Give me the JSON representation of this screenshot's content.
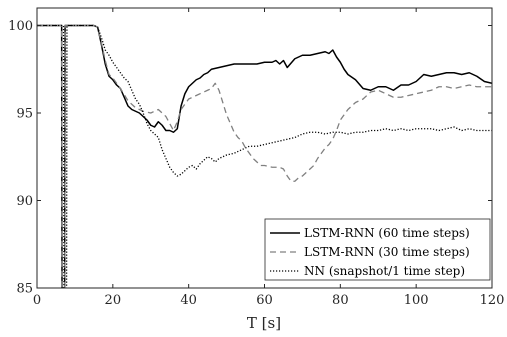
{
  "chart_data": {
    "type": "line",
    "title": "",
    "xlabel": "T [s]",
    "ylabel": "",
    "xlim": [
      0,
      120
    ],
    "ylim": [
      85,
      101
    ],
    "x_ticks": [
      0,
      20,
      40,
      60,
      80,
      100,
      120
    ],
    "y_ticks": [
      85,
      90,
      95,
      100
    ],
    "grid": false,
    "legend_position": "bottom-right",
    "series": [
      {
        "name": "LSTM-RNN (60 time steps)",
        "color": "#000000",
        "dash": "solid",
        "x": [
          0,
          6.5,
          6.6,
          7.3,
          7.4,
          8.3,
          8.4,
          12,
          15,
          16,
          17,
          18,
          19,
          20,
          21,
          22,
          23,
          24,
          25,
          26,
          27,
          28,
          29,
          30,
          31,
          32,
          33,
          34,
          35,
          36,
          37,
          38,
          39,
          40,
          41,
          42,
          43,
          44,
          45,
          46,
          48,
          50,
          52,
          54,
          56,
          58,
          60,
          62,
          63,
          64,
          65,
          66,
          68,
          70,
          72,
          74,
          76,
          77,
          78,
          79,
          80,
          81,
          82,
          84,
          86,
          88,
          90,
          92,
          94,
          96,
          98,
          100,
          102,
          104,
          106,
          108,
          110,
          112,
          114,
          116,
          118,
          120
        ],
        "y": [
          100,
          100,
          85,
          85,
          100,
          100,
          100,
          100,
          100,
          99.9,
          98.9,
          97.8,
          97.1,
          96.9,
          96.6,
          96.4,
          95.9,
          95.4,
          95.2,
          95.1,
          95.0,
          94.8,
          94.6,
          94.3,
          94.2,
          94.5,
          94.3,
          94.0,
          94.0,
          93.9,
          94.1,
          95.4,
          96.1,
          96.5,
          96.7,
          96.9,
          97.0,
          97.2,
          97.3,
          97.5,
          97.6,
          97.7,
          97.8,
          97.8,
          97.8,
          97.8,
          97.9,
          97.9,
          98.0,
          97.8,
          98.0,
          97.6,
          98.1,
          98.3,
          98.3,
          98.4,
          98.5,
          98.4,
          98.6,
          98.2,
          97.9,
          97.5,
          97.2,
          96.9,
          96.4,
          96.3,
          96.5,
          96.5,
          96.3,
          96.6,
          96.6,
          96.8,
          97.2,
          97.1,
          97.2,
          97.3,
          97.3,
          97.2,
          97.3,
          97.1,
          96.8,
          96.7
        ]
      },
      {
        "name": "LSTM-RNN (30 time steps)",
        "color": "#808080",
        "dash": "dashed",
        "x": [
          0,
          6.5,
          6.6,
          7.3,
          7.4,
          8.3,
          8.4,
          12,
          15,
          16,
          17,
          18,
          19,
          20,
          22,
          24,
          26,
          28,
          30,
          32,
          34,
          35,
          36,
          37,
          38,
          39,
          40,
          41,
          42,
          44,
          45,
          46,
          47,
          48,
          49,
          50,
          51,
          52,
          53,
          54,
          55,
          56,
          57,
          58,
          59,
          60,
          62,
          64,
          65,
          66,
          67,
          68,
          69,
          70,
          71,
          72,
          73,
          74,
          75,
          76,
          77,
          78,
          79,
          80,
          82,
          84,
          86,
          88,
          90,
          92,
          94,
          96,
          98,
          100,
          102,
          104,
          106,
          108,
          110,
          112,
          114,
          116,
          118,
          120
        ],
        "y": [
          100,
          100,
          85,
          85,
          100,
          100,
          100,
          100,
          100,
          99.9,
          99.0,
          98.0,
          97.2,
          97.0,
          96.4,
          95.7,
          95.3,
          95.1,
          95.0,
          95.2,
          94.8,
          94.4,
          94.0,
          94.5,
          95.2,
          95.5,
          95.8,
          95.9,
          96.0,
          96.2,
          96.3,
          96.4,
          96.7,
          96.3,
          95.6,
          94.9,
          94.4,
          93.9,
          93.6,
          93.4,
          93.0,
          92.7,
          92.4,
          92.2,
          92.0,
          92.0,
          91.9,
          91.9,
          91.8,
          91.4,
          91.1,
          91.1,
          91.3,
          91.4,
          91.6,
          91.8,
          92.0,
          92.4,
          92.7,
          93.0,
          93.2,
          93.5,
          94.0,
          94.6,
          95.2,
          95.6,
          95.8,
          96.2,
          96.3,
          96.1,
          95.9,
          95.9,
          96.0,
          96.1,
          96.2,
          96.3,
          96.5,
          96.5,
          96.4,
          96.5,
          96.6,
          96.5,
          96.5,
          96.5
        ]
      },
      {
        "name": "NN (snapshot/1 time step)",
        "color": "#000000",
        "dash": "dotted",
        "x": [
          0,
          7.0,
          7.1,
          7.8,
          7.9,
          8.8,
          8.9,
          12,
          15,
          16,
          17,
          18,
          19,
          20,
          21,
          22,
          23,
          24,
          25,
          26,
          27,
          28,
          29,
          30,
          31,
          32,
          33,
          34,
          35,
          36,
          37,
          38,
          39,
          40,
          41,
          42,
          43,
          44,
          45,
          46,
          47,
          48,
          50,
          52,
          54,
          56,
          58,
          60,
          62,
          64,
          66,
          68,
          70,
          72,
          74,
          76,
          78,
          80,
          82,
          84,
          86,
          88,
          90,
          92,
          94,
          96,
          98,
          100,
          102,
          104,
          106,
          108,
          110,
          112,
          114,
          116,
          118,
          120
        ],
        "y": [
          100,
          100,
          85,
          85,
          100,
          100,
          100,
          100,
          100,
          99.9,
          99.3,
          98.6,
          98.3,
          97.9,
          97.6,
          97.3,
          97.0,
          96.8,
          96.3,
          95.8,
          95.5,
          95.0,
          94.4,
          94.0,
          93.8,
          93.6,
          92.9,
          92.4,
          91.9,
          91.6,
          91.4,
          91.5,
          91.7,
          91.9,
          92.0,
          91.8,
          92.1,
          92.3,
          92.5,
          92.4,
          92.2,
          92.4,
          92.6,
          92.7,
          92.9,
          93.1,
          93.1,
          93.2,
          93.3,
          93.4,
          93.5,
          93.6,
          93.8,
          93.9,
          93.9,
          93.8,
          93.9,
          93.9,
          93.8,
          93.9,
          93.9,
          94.0,
          94.0,
          94.1,
          94.0,
          94.1,
          94.0,
          94.1,
          94.1,
          94.1,
          94.0,
          94.1,
          94.2,
          94.0,
          94.1,
          94.0,
          94.0,
          94.0
        ]
      }
    ]
  }
}
